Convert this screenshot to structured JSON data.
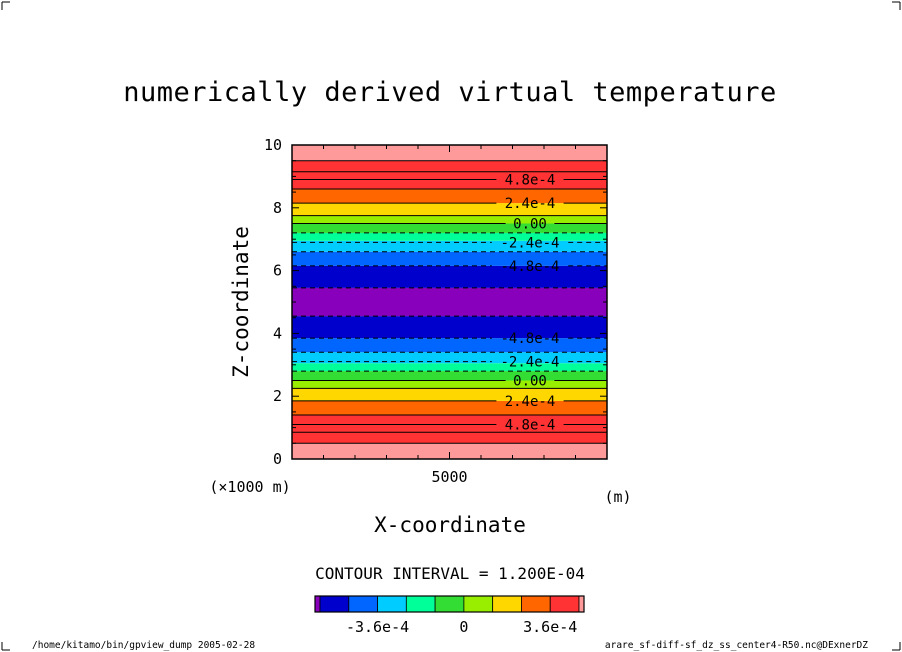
{
  "chart_data": {
    "type": "contour",
    "title": "numerically derived virtual temperature",
    "xlabel": "X-coordinate",
    "ylabel": "Z-coordinate",
    "x_unit": "(m)",
    "x_scale_note": "(×1000 m)",
    "x_ticks": [
      {
        "value": 5000,
        "label": "5000"
      }
    ],
    "y_ticks": [
      {
        "value": 0,
        "label": "0"
      },
      {
        "value": 2,
        "label": "2"
      },
      {
        "value": 4,
        "label": "4"
      },
      {
        "value": 6,
        "label": "6"
      },
      {
        "value": 8,
        "label": "8"
      },
      {
        "value": 10,
        "label": "10"
      }
    ],
    "xlim": [
      0,
      10000
    ],
    "ylim": [
      0,
      10
    ],
    "contour_interval_text": "CONTOUR INTERVAL = 1.200E-04",
    "bands": [
      {
        "z0": 0.0,
        "z1": 0.5,
        "color": "#ff9a9a"
      },
      {
        "z0": 0.5,
        "z1": 1.4,
        "color": "#ff3333"
      },
      {
        "z0": 1.4,
        "z1": 1.85,
        "color": "#ff6600"
      },
      {
        "z0": 1.85,
        "z1": 2.25,
        "color": "#ffd700"
      },
      {
        "z0": 2.25,
        "z1": 2.5,
        "color": "#99ee00"
      },
      {
        "z0": 2.5,
        "z1": 2.8,
        "color": "#33dd33"
      },
      {
        "z0": 2.8,
        "z1": 3.05,
        "color": "#00ff99"
      },
      {
        "z0": 3.05,
        "z1": 3.4,
        "color": "#00ccff"
      },
      {
        "z0": 3.4,
        "z1": 3.85,
        "color": "#0066ff"
      },
      {
        "z0": 3.85,
        "z1": 4.55,
        "color": "#0000cc"
      },
      {
        "z0": 4.55,
        "z1": 5.45,
        "color": "#8800bb"
      },
      {
        "z0": 5.45,
        "z1": 6.15,
        "color": "#0000cc"
      },
      {
        "z0": 6.15,
        "z1": 6.6,
        "color": "#0066ff"
      },
      {
        "z0": 6.6,
        "z1": 6.95,
        "color": "#00ccff"
      },
      {
        "z0": 6.95,
        "z1": 7.2,
        "color": "#00ff99"
      },
      {
        "z0": 7.2,
        "z1": 7.5,
        "color": "#33dd33"
      },
      {
        "z0": 7.5,
        "z1": 7.75,
        "color": "#99ee00"
      },
      {
        "z0": 7.75,
        "z1": 8.15,
        "color": "#ffd700"
      },
      {
        "z0": 8.15,
        "z1": 8.6,
        "color": "#ff6600"
      },
      {
        "z0": 8.6,
        "z1": 9.5,
        "color": "#ff3333"
      },
      {
        "z0": 9.5,
        "z1": 10.0,
        "color": "#ff9a9a"
      }
    ],
    "contour_lines": [
      {
        "z": 0.5,
        "style": "solid"
      },
      {
        "z": 0.85,
        "style": "solid"
      },
      {
        "z": 1.1,
        "style": "solid",
        "label": "4.8e-4"
      },
      {
        "z": 1.4,
        "style": "solid"
      },
      {
        "z": 1.85,
        "style": "solid",
        "label": "2.4e-4"
      },
      {
        "z": 2.25,
        "style": "solid"
      },
      {
        "z": 2.5,
        "style": "solid",
        "label": "0.00"
      },
      {
        "z": 2.8,
        "style": "dashed"
      },
      {
        "z": 3.1,
        "style": "dashed",
        "label": "-2.4e-4"
      },
      {
        "z": 3.4,
        "style": "dashed"
      },
      {
        "z": 3.85,
        "style": "dashed",
        "label": "-4.8e-4"
      },
      {
        "z": 4.55,
        "style": "dashed"
      },
      {
        "z": 5.45,
        "style": "dashed"
      },
      {
        "z": 6.15,
        "style": "dashed",
        "label": "-4.8e-4"
      },
      {
        "z": 6.6,
        "style": "dashed"
      },
      {
        "z": 6.9,
        "style": "dashed",
        "label": "-2.4e-4"
      },
      {
        "z": 7.2,
        "style": "dashed"
      },
      {
        "z": 7.5,
        "style": "solid",
        "label": "0.00"
      },
      {
        "z": 7.75,
        "style": "solid"
      },
      {
        "z": 8.15,
        "style": "solid",
        "label": "2.4e-4"
      },
      {
        "z": 8.6,
        "style": "solid"
      },
      {
        "z": 8.9,
        "style": "solid",
        "label": "4.8e-4"
      },
      {
        "z": 9.15,
        "style": "solid"
      },
      {
        "z": 9.5,
        "style": "solid"
      }
    ],
    "colorbar": {
      "colors": [
        "#8800bb",
        "#0000cc",
        "#0066ff",
        "#00ccff",
        "#00ff99",
        "#33dd33",
        "#99ee00",
        "#ffd700",
        "#ff6600",
        "#ff3333",
        "#ff9a9a"
      ],
      "tick_labels": [
        "-3.6e-4",
        "0",
        "3.6e-4"
      ]
    }
  },
  "footer": {
    "left": "/home/kitamo/bin/gpview_dump  2005-02-28",
    "right": "arare_sf-diff-sf_dz_ss_center4-R50.nc@DExnerDZ"
  }
}
